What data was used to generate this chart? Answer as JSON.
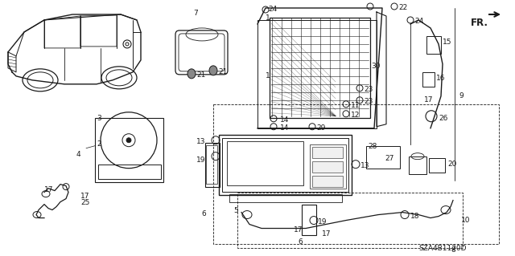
{
  "background_color": "#ffffff",
  "diagram_code": "SZA4B1120D",
  "fr_label": "FR.",
  "line_color": "#1a1a1a",
  "text_color": "#1a1a1a",
  "label_fontsize": 6.5,
  "title_fontsize": 8
}
